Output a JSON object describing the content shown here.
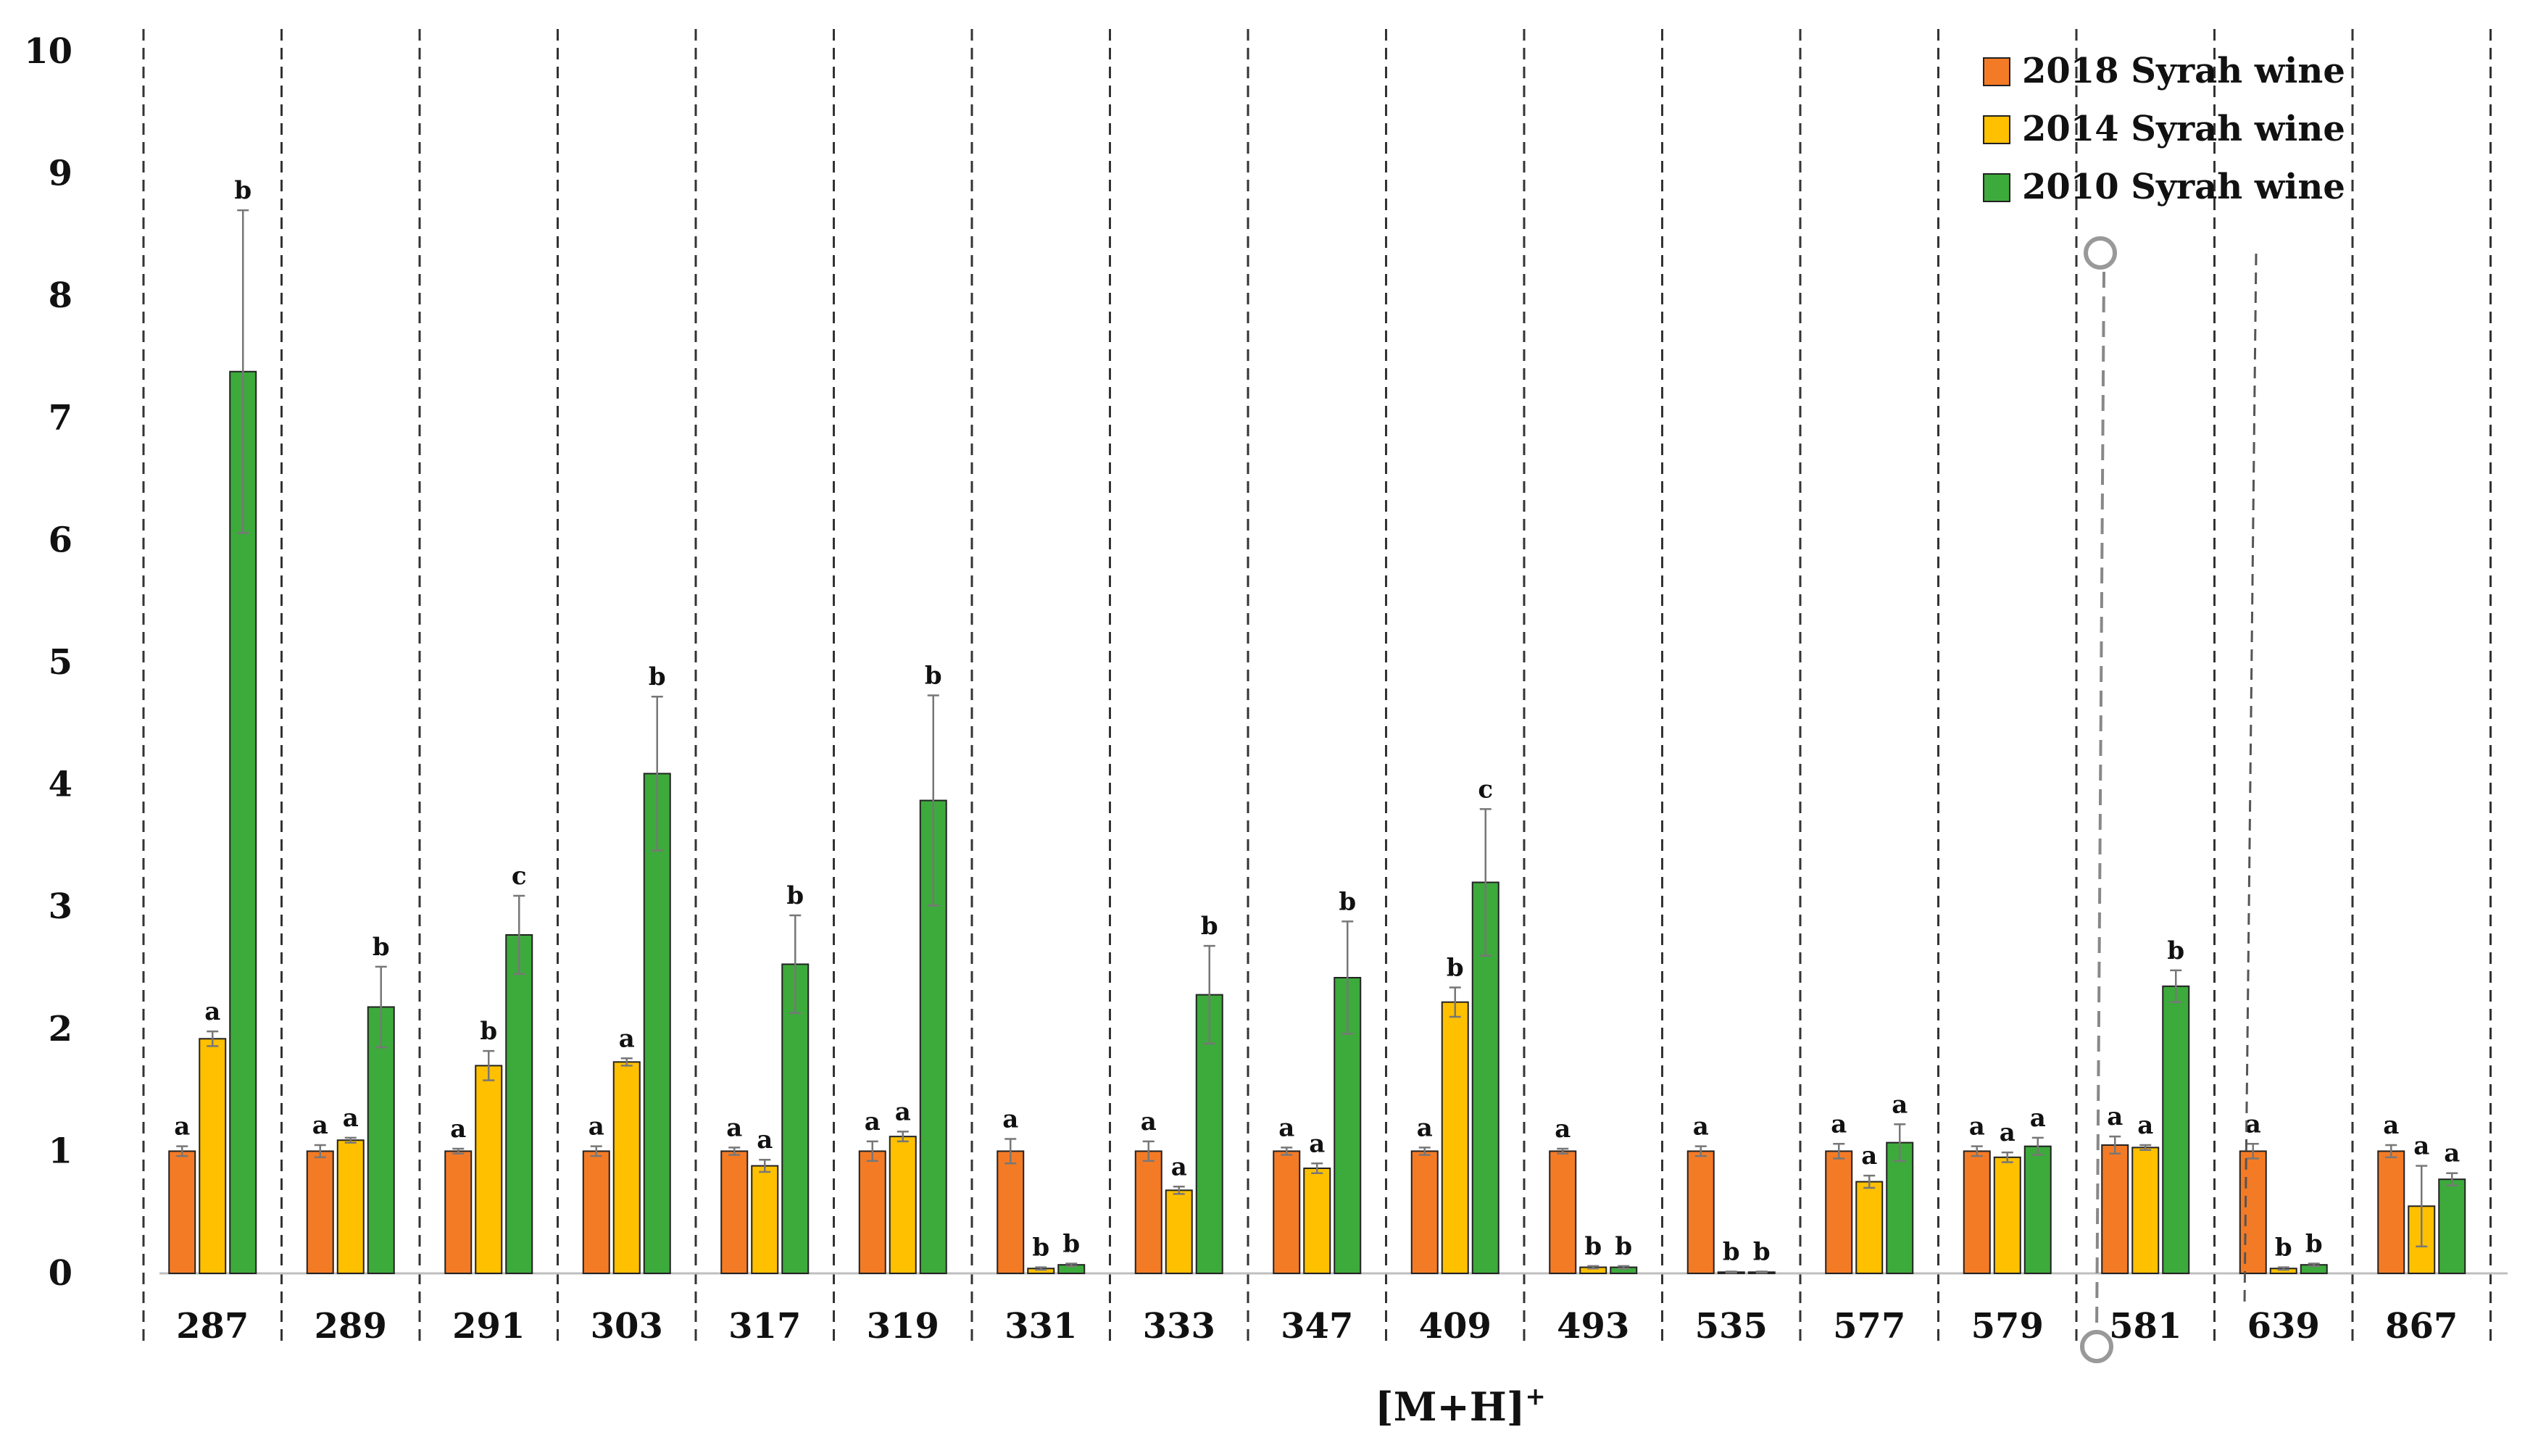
{
  "chart_data": {
    "type": "bar",
    "title": "",
    "xlabel": "[M+H]",
    "xlabel_superscript": "+",
    "ylabel": "",
    "ylim": [
      0,
      10
    ],
    "yticks": [
      "0",
      "1",
      "2",
      "3",
      "4",
      "5",
      "6",
      "7",
      "8",
      "9",
      "10"
    ],
    "grid": false,
    "legend_position": "top-right",
    "categories": [
      "287",
      "289",
      "291",
      "303",
      "317",
      "319",
      "331",
      "333",
      "347",
      "409",
      "493",
      "535",
      "577",
      "579",
      "581",
      "639",
      "867"
    ],
    "series": [
      {
        "name": "2018 Syrah wine",
        "color": "#F47B26",
        "values": [
          1.0,
          1.0,
          1.0,
          1.0,
          1.0,
          1.0,
          1.0,
          1.0,
          1.0,
          1.0,
          1.0,
          1.0,
          1.0,
          1.0,
          1.05,
          1.0,
          1.0
        ],
        "errors": [
          0.04,
          0.05,
          0.02,
          0.04,
          0.03,
          0.08,
          0.1,
          0.08,
          0.03,
          0.03,
          0.02,
          0.04,
          0.06,
          0.04,
          0.07,
          0.06,
          0.05
        ],
        "letters": [
          "a",
          "a",
          "a",
          "a",
          "a",
          "a",
          "a",
          "a",
          "a",
          "a",
          "a",
          "a",
          "a",
          "a",
          "a",
          "a",
          "a"
        ]
      },
      {
        "name": "2014 Syrah wine",
        "color": "#FFC000",
        "values": [
          1.92,
          1.09,
          1.7,
          1.73,
          0.88,
          1.12,
          0.04,
          0.68,
          0.86,
          2.22,
          0.05,
          0.01,
          0.75,
          0.95,
          1.03,
          0.04,
          0.55
        ],
        "errors": [
          0.06,
          0.02,
          0.12,
          0.03,
          0.05,
          0.04,
          0.01,
          0.03,
          0.04,
          0.12,
          0.01,
          0.005,
          0.05,
          0.04,
          0.02,
          0.01,
          0.33
        ],
        "letters": [
          "a",
          "a",
          "b",
          "a",
          "a",
          "a",
          "b",
          "a",
          "a",
          "b",
          "b",
          "b",
          "a",
          "a",
          "a",
          "b",
          "a"
        ]
      },
      {
        "name": "2010 Syrah wine",
        "color": "#3DAA3C",
        "values": [
          7.38,
          2.18,
          2.77,
          4.09,
          2.53,
          3.87,
          0.07,
          2.28,
          2.42,
          3.2,
          0.05,
          0.01,
          1.07,
          1.04,
          2.35,
          0.07,
          0.77
        ],
        "errors": [
          1.32,
          0.33,
          0.32,
          0.63,
          0.4,
          0.86,
          0.01,
          0.4,
          0.46,
          0.6,
          0.01,
          0.005,
          0.15,
          0.07,
          0.13,
          0.01,
          0.05
        ],
        "letters": [
          "b",
          "b",
          "c",
          "b",
          "b",
          "b",
          "b",
          "b",
          "b",
          "c",
          "b",
          "b",
          "a",
          "a",
          "b",
          "b",
          "a"
        ]
      }
    ]
  }
}
